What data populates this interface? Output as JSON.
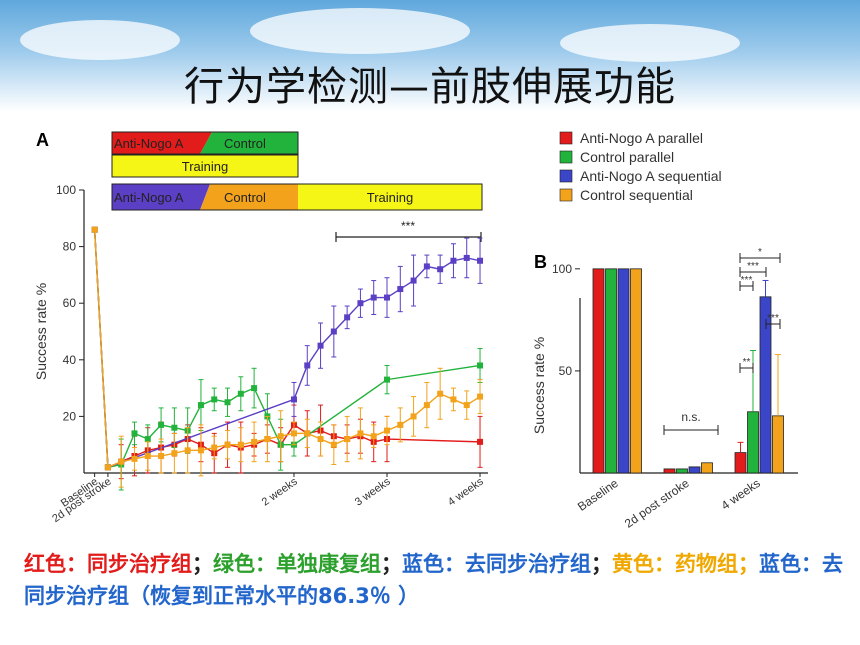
{
  "slide": {
    "title": "行为学检测—前肢伸展功能"
  },
  "colors": {
    "red": "#e21b1b",
    "green": "#21b33b",
    "blue": "#5b3fc4",
    "orange": "#f2a31b",
    "yellow": "#f5f516"
  },
  "panelA": {
    "letter": "A",
    "bar1_left": "Anti-Nogo A",
    "bar1_right": "Control",
    "bar2": "Training",
    "bar3_left": "Anti-Nogo A",
    "bar3_mid": "Control",
    "bar3_right": "Training",
    "significance": "***"
  },
  "legend": [
    {
      "label": "Anti-Nogo A parallel",
      "color": "#e21b1b"
    },
    {
      "label": "Control parallel",
      "color": "#21b33b"
    },
    {
      "label": "Anti-Nogo A sequential",
      "color": "#3a45c8"
    },
    {
      "label": "Control sequential",
      "color": "#f2a31b"
    }
  ],
  "panelB": {
    "letter": "B",
    "ns_label": "n.s.",
    "sig": [
      "*",
      "***",
      "***",
      "***",
      "**"
    ]
  },
  "chart_data": [
    {
      "type": "line",
      "title": "",
      "xlabel": "",
      "ylabel": "Success rate %",
      "ylim": [
        0,
        100
      ],
      "yticks": [
        20,
        40,
        60,
        80,
        100
      ],
      "xtick_labels": [
        "Baseline",
        "2d post stroke",
        "2 weeks",
        "3 weeks",
        "4 weeks"
      ],
      "x_positions": [
        -1,
        0,
        14,
        21,
        28
      ],
      "series": [
        {
          "name": "Anti-Nogo A parallel",
          "color": "#e21b1b",
          "x": [
            -1,
            0,
            1,
            2,
            3,
            4,
            5,
            6,
            7,
            8,
            9,
            10,
            11,
            12,
            13,
            14,
            15,
            16,
            17,
            18,
            19,
            20,
            21,
            28
          ],
          "y": [
            86,
            2,
            4,
            6,
            8,
            9,
            10,
            12,
            10,
            7,
            10,
            9,
            10,
            12,
            10,
            17,
            14,
            15,
            13,
            12,
            13,
            11,
            12,
            11
          ]
        },
        {
          "name": "Control parallel",
          "color": "#21b33b",
          "x": [
            -1,
            0,
            1,
            2,
            3,
            4,
            5,
            6,
            7,
            8,
            9,
            10,
            11,
            12,
            13,
            14,
            21,
            28
          ],
          "y": [
            86,
            2,
            3,
            14,
            12,
            17,
            16,
            15,
            24,
            26,
            25,
            28,
            30,
            20,
            10,
            10,
            33,
            38
          ]
        },
        {
          "name": "Anti-Nogo A sequential",
          "color": "#5b3fc4",
          "x": [
            -1,
            0,
            14,
            15,
            16,
            17,
            18,
            19,
            20,
            21,
            22,
            23,
            24,
            25,
            26,
            27,
            28
          ],
          "y": [
            86,
            2,
            26,
            38,
            45,
            50,
            55,
            60,
            62,
            62,
            65,
            68,
            73,
            72,
            75,
            76,
            75
          ]
        },
        {
          "name": "Control sequential",
          "color": "#f2a31b",
          "x": [
            -1,
            0,
            1,
            2,
            3,
            4,
            5,
            6,
            7,
            8,
            9,
            10,
            11,
            12,
            13,
            14,
            15,
            16,
            17,
            18,
            19,
            20,
            21,
            22,
            23,
            24,
            25,
            26,
            27,
            28
          ],
          "y": [
            86,
            2,
            4,
            5,
            6,
            6,
            7,
            8,
            8,
            9,
            10,
            10,
            11,
            12,
            13,
            14,
            14,
            12,
            10,
            12,
            14,
            13,
            15,
            17,
            20,
            24,
            28,
            26,
            24,
            27
          ]
        }
      ],
      "annotation": "***"
    },
    {
      "type": "bar",
      "ylabel": "Success rate %",
      "ylim": [
        0,
        120
      ],
      "yticks": [
        50,
        100
      ],
      "categories": [
        "Baseline",
        "2d post stroke",
        "4 weeks"
      ],
      "series": [
        {
          "name": "Anti-Nogo A parallel",
          "color": "#e21b1b",
          "values": [
            100,
            2,
            10
          ]
        },
        {
          "name": "Control parallel",
          "color": "#21b33b",
          "values": [
            100,
            2,
            30
          ]
        },
        {
          "name": "Anti-Nogo A sequential",
          "color": "#3a45c8",
          "values": [
            100,
            3,
            86.3
          ]
        },
        {
          "name": "Control sequential",
          "color": "#f2a31b",
          "values": [
            100,
            5,
            28
          ]
        }
      ]
    }
  ],
  "caption": {
    "red_label": "红色：同步治疗组",
    "sep1": "；",
    "green_label": "绿色：单独康复组",
    "sep2": "；",
    "blue_label": "蓝色：去同步治疗组",
    "sep3": "；",
    "yellow_label": "黄色：药物组",
    "sep4": "；",
    "blue2_label": "蓝色：去同步治疗组（恢复到正常水平的86.3％ ）"
  }
}
